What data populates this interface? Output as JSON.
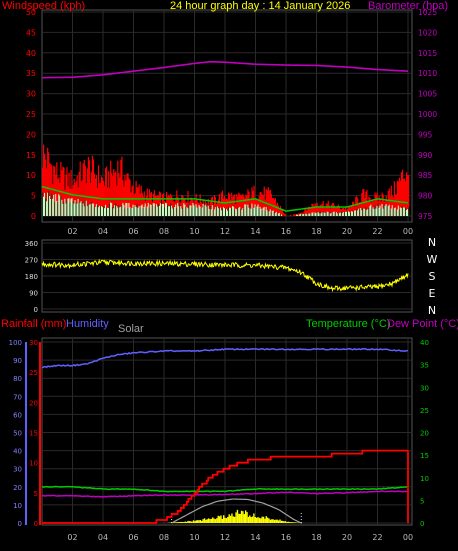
{
  "header": {
    "windspeed_label": "Windspeed (kph)",
    "title": "24 hour graph day : 14 January 2026",
    "barometer_label": "Barometer (hpa)"
  },
  "lower_labels": {
    "rainfall": "Rainfall (mm)",
    "humidity": "Humidity",
    "solar": "Solar",
    "temperature": "Temperature (°C)",
    "dewpoint": "Dew Point (°C)"
  },
  "compass": [
    "N",
    "W",
    "S",
    "E",
    "N"
  ],
  "colors": {
    "wind_gust": "#ff0000",
    "wind_avg": "#00cc00",
    "wind_bars": "#ccffcc",
    "barometer": "#c000c0",
    "direction": "#ffff00",
    "rain": "#ff0000",
    "humidity": "#6060ff",
    "solar": "#ffff00",
    "solar_max": "#a0a0a0",
    "temperature": "#00cc00",
    "dewpoint": "#c000c0",
    "grid": "#2a2a2a"
  },
  "chart_data": [
    {
      "id": "wind_baro",
      "type": "line",
      "title": "24 hour graph day : 14 January 2026",
      "x_ticks": [
        "02",
        "04",
        "06",
        "08",
        "10",
        "12",
        "14",
        "16",
        "18",
        "20",
        "22",
        "00"
      ],
      "y_left": {
        "label": "Windspeed (kph)",
        "ticks": [
          0,
          5,
          10,
          15,
          20,
          25,
          30,
          35,
          40,
          45,
          50
        ]
      },
      "y_right": {
        "label": "Barometer (hpa)",
        "ticks": [
          975,
          980,
          985,
          990,
          995,
          1000,
          1005,
          1010,
          1015,
          1020,
          1025
        ]
      },
      "series": [
        {
          "name": "Barometer",
          "axis": "right",
          "x": [
            0,
            2,
            4,
            6,
            8,
            10,
            11,
            12,
            14,
            16,
            18,
            20,
            22,
            24
          ],
          "values": [
            1008.9,
            1009.0,
            1009.6,
            1010.5,
            1011.4,
            1012.4,
            1012.8,
            1012.7,
            1012.2,
            1012.0,
            1011.9,
            1011.5,
            1010.9,
            1010.5
          ]
        },
        {
          "name": "Gust",
          "axis": "left",
          "x": [
            0,
            1,
            2,
            3,
            4,
            5,
            6,
            7,
            8,
            9,
            10,
            11,
            12,
            13,
            14,
            15,
            16,
            17,
            18,
            19,
            20,
            21,
            22,
            23,
            24
          ],
          "values": [
            18,
            12,
            10,
            14,
            10,
            14,
            8,
            6,
            5,
            6,
            5,
            4,
            6,
            5,
            7,
            6,
            0,
            1,
            4,
            3,
            2,
            6,
            5,
            7,
            14
          ]
        },
        {
          "name": "Average",
          "axis": "left",
          "x": [
            0,
            2,
            4,
            6,
            8,
            10,
            12,
            14,
            16,
            18,
            20,
            22,
            24
          ],
          "values": [
            6,
            4,
            3,
            3,
            3,
            3,
            2,
            3,
            0,
            1,
            1,
            3,
            2
          ]
        }
      ]
    },
    {
      "id": "direction",
      "type": "line",
      "y_ticks": [
        0,
        90,
        180,
        270,
        360
      ],
      "series": [
        {
          "name": "Direction",
          "x": [
            0,
            2,
            4,
            6,
            8,
            10,
            12,
            14,
            16,
            17,
            18,
            19,
            20,
            22,
            23,
            24
          ],
          "values": [
            245,
            240,
            255,
            250,
            248,
            245,
            240,
            238,
            225,
            200,
            140,
            110,
            115,
            120,
            140,
            190
          ]
        }
      ]
    },
    {
      "id": "lower",
      "type": "line",
      "x_ticks": [
        "02",
        "04",
        "06",
        "08",
        "10",
        "12",
        "14",
        "16",
        "18",
        "20",
        "22",
        "00"
      ],
      "y_humidity_ticks": [
        0,
        10,
        20,
        30,
        40,
        50,
        60,
        70,
        80,
        90,
        100
      ],
      "y_rain_ticks": [
        0,
        5,
        10,
        15,
        20,
        25,
        30
      ],
      "y_temp_ticks": [
        0,
        5,
        10,
        15,
        20,
        25,
        30,
        35,
        40
      ],
      "series": [
        {
          "name": "Humidity",
          "axis": "humidity",
          "x": [
            0,
            1,
            2,
            3,
            4,
            5,
            6,
            8,
            10,
            12,
            14,
            16,
            18,
            20,
            22,
            24
          ],
          "values": [
            86,
            87,
            87,
            88,
            91,
            93,
            94,
            95,
            95,
            96,
            96,
            96,
            96,
            96,
            96,
            95
          ]
        },
        {
          "name": "Rainfall",
          "axis": "rain",
          "x": [
            0,
            7,
            8,
            9,
            10,
            11,
            12,
            13,
            14,
            16,
            18,
            20,
            22,
            24
          ],
          "values": [
            0,
            0,
            0.5,
            2,
            5,
            7.5,
            9,
            10,
            10.5,
            11,
            11,
            11.5,
            12,
            12
          ]
        },
        {
          "name": "Temperature",
          "axis": "temp",
          "x": [
            0,
            2,
            4,
            6,
            8,
            10,
            12,
            14,
            16,
            18,
            20,
            22,
            24
          ],
          "values": [
            8,
            8,
            7.5,
            7.5,
            7,
            7,
            7,
            7.5,
            7.5,
            7.5,
            7.5,
            7.5,
            8
          ]
        },
        {
          "name": "Dew Point",
          "axis": "temp",
          "x": [
            0,
            2,
            4,
            6,
            8,
            10,
            12,
            14,
            16,
            18,
            20,
            22,
            24
          ],
          "values": [
            6,
            6,
            5.8,
            6,
            6.2,
            6.2,
            6.3,
            6.5,
            6.8,
            6.5,
            6.7,
            7,
            7
          ]
        },
        {
          "name": "Solar",
          "axis": "temp",
          "x": [
            8,
            9,
            10,
            11,
            12,
            13,
            14,
            15,
            16,
            17
          ],
          "values": [
            0,
            0.2,
            0.5,
            1,
            1.5,
            2.5,
            1.5,
            1,
            0.3,
            0
          ]
        },
        {
          "name": "Solar max",
          "axis": "temp",
          "x": [
            8.5,
            9.5,
            10.5,
            11.5,
            12.5,
            13.5,
            14.5,
            15.5,
            16.5,
            17
          ],
          "values": [
            0,
            1.8,
            3.6,
            4.8,
            5.3,
            5.2,
            4.4,
            3.0,
            0.8,
            0
          ]
        }
      ]
    }
  ]
}
